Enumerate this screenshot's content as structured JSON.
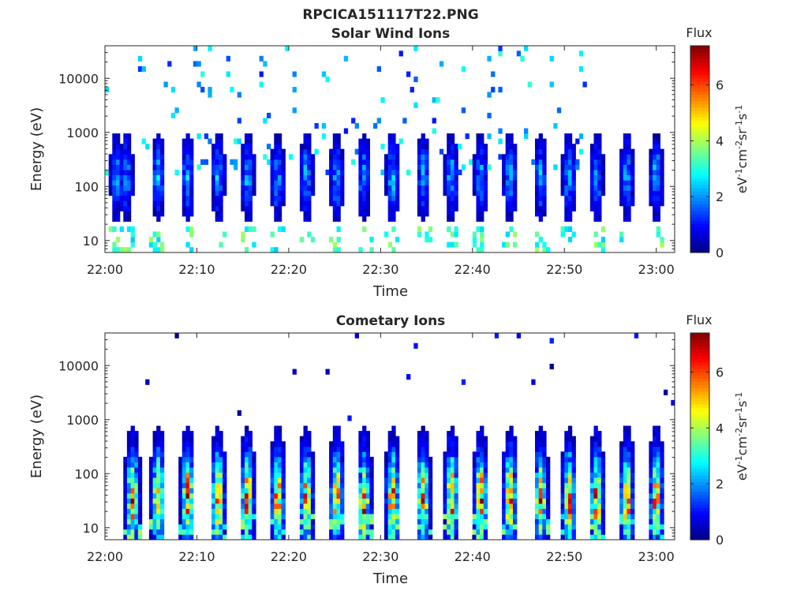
{
  "figure_title": "RPCICA151117T22.PNG",
  "chart_data": [
    {
      "type": "heatmap",
      "title": "Solar Wind Ions",
      "xlabel": "Time",
      "ylabel": "Energy (eV)",
      "x_range": [
        "22:00",
        "23:02"
      ],
      "x_ticks": [
        "22:00",
        "22:10",
        "22:20",
        "22:30",
        "22:40",
        "22:50",
        "23:00"
      ],
      "y_scale": "log",
      "y_range": [
        6,
        40000
      ],
      "y_ticks": [
        10,
        100,
        1000,
        10000
      ],
      "y_tick_labels": [
        "10",
        "100",
        "1000",
        "10000"
      ],
      "colorbar": {
        "title": "Flux",
        "label": "eV-1cm-2sr-1s-1",
        "label_parts": [
          [
            "eV",
            ""
          ],
          [
            "-1",
            "sup"
          ],
          [
            "cm",
            ""
          ],
          [
            "-2",
            "sup"
          ],
          [
            "sr",
            ""
          ],
          [
            "-1",
            "sup"
          ],
          [
            "s",
            ""
          ],
          [
            "-1",
            "sup"
          ]
        ],
        "range": [
          0,
          7.4
        ],
        "ticks": [
          0,
          2,
          4,
          6
        ],
        "colormap": "jet"
      },
      "scan_times_min": [
        1.1,
        2.1,
        5.6,
        8.8,
        12.1,
        15.3,
        18.6,
        21.7,
        25.0,
        28.0,
        31.1,
        34.4,
        37.5,
        40.7,
        43.9,
        47.2,
        50.3,
        53.3,
        56.6,
        59.8
      ],
      "peak_energy_eV": 150,
      "peak_flux": 1.8,
      "background": "scattered 1-3 flux counts between 150 and 40000 eV, 22:00-22:52"
    },
    {
      "type": "heatmap",
      "title": "Cometary Ions",
      "xlabel": "Time",
      "ylabel": "Energy (eV)",
      "x_range": [
        "22:00",
        "23:02"
      ],
      "x_ticks": [
        "22:00",
        "22:10",
        "22:20",
        "22:30",
        "22:40",
        "22:50",
        "23:00"
      ],
      "y_scale": "log",
      "y_range": [
        6,
        40000
      ],
      "y_ticks": [
        10,
        100,
        1000,
        10000
      ],
      "y_tick_labels": [
        "10",
        "100",
        "1000",
        "10000"
      ],
      "colorbar": {
        "title": "Flux",
        "label": "eV-1cm-2sr-1s-1",
        "label_parts": [
          [
            "eV",
            ""
          ],
          [
            "-1",
            "sup"
          ],
          [
            "cm",
            ""
          ],
          [
            "-2",
            "sup"
          ],
          [
            "sr",
            ""
          ],
          [
            "-1",
            "sup"
          ],
          [
            "s",
            ""
          ],
          [
            "-1",
            "sup"
          ]
        ],
        "range": [
          0,
          7.4
        ],
        "ticks": [
          0,
          2,
          4,
          6
        ],
        "colormap": "jet"
      },
      "scan_times_min": [
        2.8,
        5.6,
        8.8,
        12.1,
        15.3,
        18.6,
        21.7,
        25.0,
        28.0,
        31.1,
        34.4,
        37.5,
        40.7,
        43.9,
        47.2,
        50.3,
        53.3,
        56.6,
        59.8
      ],
      "peak_energy_eV": 35,
      "peak_flux": 5.5,
      "background": "sparse 0-1 flux counts above 1000 eV"
    }
  ]
}
